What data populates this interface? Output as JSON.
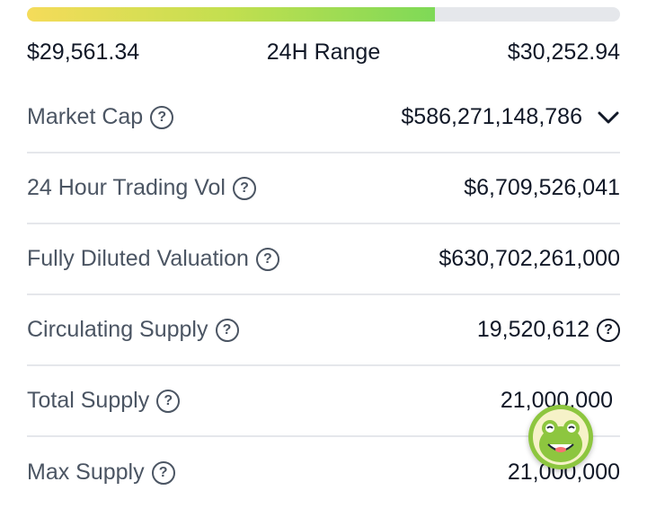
{
  "range": {
    "fraction": 0.688,
    "low": "$29,561.34",
    "title": "24H Range",
    "high": "$30,252.94"
  },
  "stats": [
    {
      "label": "Market Cap",
      "value": "$586,271,148,786",
      "has_dropdown": true,
      "value_help": false
    },
    {
      "label": "24 Hour Trading Vol",
      "value": "$6,709,526,041",
      "has_dropdown": false,
      "value_help": false
    },
    {
      "label": "Fully Diluted Valuation",
      "value": "$630,702,261,000",
      "has_dropdown": false,
      "value_help": false
    },
    {
      "label": "Circulating Supply",
      "value": "19,520,612",
      "has_dropdown": false,
      "value_help": true
    },
    {
      "label": "Total Supply",
      "value": "21,000,000",
      "has_dropdown": false,
      "value_help": false
    },
    {
      "label": "Max Supply",
      "value": "21,000,000",
      "has_dropdown": false,
      "value_help": false
    }
  ],
  "help_glyph": "?",
  "colors": {
    "accent_green": "#8dc63f",
    "track": "#e5e7eb"
  }
}
